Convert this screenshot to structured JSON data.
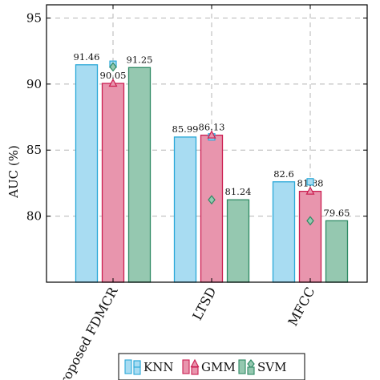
{
  "chart_data": {
    "type": "bar",
    "categories": [
      "Proposed FDMCR",
      "LTSD",
      "MFCC"
    ],
    "ylabel": "AUC (%)",
    "xlabel": "",
    "title": "",
    "ylim": [
      75,
      96
    ],
    "yticks": [
      80,
      85,
      90,
      95
    ],
    "grid": true,
    "legend_position": "bottom",
    "series": [
      {
        "name": "KNN",
        "values": [
          91.46,
          85.99,
          82.6
        ],
        "value_labels": [
          "91.46",
          "85.99",
          "82.6"
        ],
        "marker_values": [
          91.5,
          86.0,
          82.6
        ],
        "marker": "square",
        "fill": "#a8dcf2",
        "stroke": "#2aa8d8"
      },
      {
        "name": "GMM",
        "values": [
          90.05,
          86.13,
          81.88
        ],
        "value_labels": [
          "90.05",
          "86.13",
          "81.88"
        ],
        "marker_values": [
          90.05,
          86.13,
          81.88
        ],
        "marker": "triangle",
        "fill": "#e895ad",
        "stroke": "#cc1f52"
      },
      {
        "name": "SVM",
        "values": [
          91.25,
          81.24,
          79.65
        ],
        "value_labels": [
          "91.25",
          "81.24",
          "79.65"
        ],
        "marker_values": [
          91.3,
          81.24,
          79.65
        ],
        "marker": "diamond",
        "fill": "#95c8b0",
        "stroke": "#2e8a64"
      }
    ]
  }
}
